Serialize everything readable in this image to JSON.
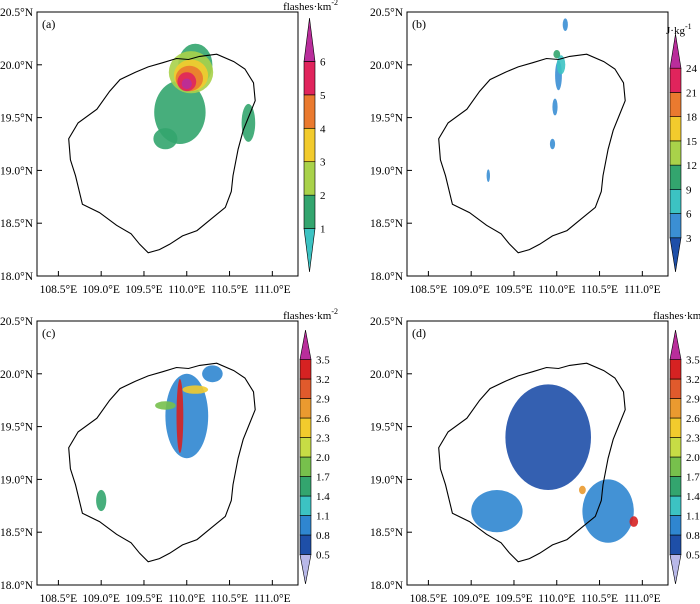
{
  "figure": {
    "xticks": [
      "108.5°E",
      "109.0°E",
      "109.5°E",
      "110.0°E",
      "110.5°E",
      "111.0°E"
    ],
    "yticks": [
      "20.5°N",
      "20.0°N",
      "19.5°N",
      "19.0°N",
      "18.5°N",
      "18.0°N"
    ]
  },
  "chart_data": [
    {
      "type": "heatmap",
      "panel_label": "(a)",
      "colorbar_title": "flashes·km",
      "colorbar_title_exp": "-2",
      "xlim": [
        108.25,
        111.3
      ],
      "ylim": [
        18.0,
        20.5
      ],
      "colorbar_levels": [
        "1",
        "2",
        "3",
        "4",
        "5",
        "6"
      ],
      "colorbar_colors": [
        "#3cc3c3",
        "#33a56e",
        "#a9d24a",
        "#f2cb2d",
        "#ea7a2f",
        "#e0245c",
        "#b92d9b"
      ],
      "blobs": [
        {
          "lon": 110.0,
          "lat": 19.82,
          "rx": 0.06,
          "ry": 0.05,
          "level": 6
        },
        {
          "lon": 110.0,
          "lat": 19.84,
          "rx": 0.11,
          "ry": 0.09,
          "level": 5
        },
        {
          "lon": 110.03,
          "lat": 19.87,
          "rx": 0.16,
          "ry": 0.12,
          "level": 4
        },
        {
          "lon": 110.05,
          "lat": 19.9,
          "rx": 0.2,
          "ry": 0.15,
          "level": 3
        },
        {
          "lon": 110.05,
          "lat": 19.93,
          "rx": 0.26,
          "ry": 0.2,
          "level": 2
        },
        {
          "lon": 109.92,
          "lat": 19.55,
          "rx": 0.3,
          "ry": 0.3,
          "level": 1
        },
        {
          "lon": 110.1,
          "lat": 20.0,
          "rx": 0.2,
          "ry": 0.2,
          "level": 1
        },
        {
          "lon": 109.75,
          "lat": 19.3,
          "rx": 0.14,
          "ry": 0.1,
          "level": 1
        },
        {
          "lon": 110.72,
          "lat": 19.45,
          "rx": 0.08,
          "ry": 0.18,
          "level": 1
        }
      ]
    },
    {
      "type": "heatmap",
      "panel_label": "(b)",
      "colorbar_title": "J·kg",
      "colorbar_title_exp": "-1",
      "xlim": [
        108.25,
        111.3
      ],
      "ylim": [
        18.0,
        20.5
      ],
      "colorbar_levels": [
        "3",
        "6",
        "9",
        "12",
        "15",
        "18",
        "21",
        "24"
      ],
      "colorbar_colors": [
        "#1e4fa8",
        "#3b8fd4",
        "#3cc3c3",
        "#33a56e",
        "#a9d24a",
        "#f2cb2d",
        "#ea7a2f",
        "#e0245c",
        "#b92d9b"
      ],
      "blobs": [
        {
          "lon": 110.05,
          "lat": 20.0,
          "rx": 0.05,
          "ry": 0.09,
          "level": 2
        },
        {
          "lon": 110.02,
          "lat": 19.9,
          "rx": 0.04,
          "ry": 0.14,
          "level": 1
        },
        {
          "lon": 109.98,
          "lat": 19.6,
          "rx": 0.03,
          "ry": 0.08,
          "level": 1
        },
        {
          "lon": 109.95,
          "lat": 19.25,
          "rx": 0.03,
          "ry": 0.05,
          "level": 1
        },
        {
          "lon": 110.0,
          "lat": 20.1,
          "rx": 0.04,
          "ry": 0.04,
          "level": 3
        },
        {
          "lon": 109.2,
          "lat": 18.95,
          "rx": 0.02,
          "ry": 0.06,
          "level": 1
        },
        {
          "lon": 110.1,
          "lat": 20.38,
          "rx": 0.03,
          "ry": 0.06,
          "level": 1
        }
      ]
    },
    {
      "type": "heatmap",
      "panel_label": "(c)",
      "colorbar_title": "flashes·km",
      "colorbar_title_exp": "-2",
      "xlim": [
        108.25,
        111.3
      ],
      "ylim": [
        18.0,
        20.5
      ],
      "colorbar_levels": [
        "0.5",
        "0.8",
        "1.1",
        "1.4",
        "1.7",
        "2.0",
        "2.3",
        "2.6",
        "2.9",
        "3.2",
        "3.5"
      ],
      "colorbar_colors": [
        "#b8b8e8",
        "#1e4fa8",
        "#2f86d0",
        "#3cc3c3",
        "#33a56e",
        "#77c04c",
        "#c7dc45",
        "#f2cb2d",
        "#ea9a2f",
        "#e05a2c",
        "#d62222",
        "#b92d9b"
      ],
      "blobs": [
        {
          "lon": 109.92,
          "lat": 19.6,
          "rx": 0.04,
          "ry": 0.35,
          "level": 10
        },
        {
          "lon": 110.1,
          "lat": 19.85,
          "rx": 0.15,
          "ry": 0.04,
          "level": 7
        },
        {
          "lon": 109.75,
          "lat": 19.7,
          "rx": 0.12,
          "ry": 0.04,
          "level": 5
        },
        {
          "lon": 110.0,
          "lat": 19.6,
          "rx": 0.25,
          "ry": 0.4,
          "level": 2
        },
        {
          "lon": 109.0,
          "lat": 18.8,
          "rx": 0.06,
          "ry": 0.1,
          "level": 4
        },
        {
          "lon": 110.3,
          "lat": 20.0,
          "rx": 0.12,
          "ry": 0.08,
          "level": 2
        }
      ]
    },
    {
      "type": "heatmap",
      "panel_label": "(d)",
      "colorbar_title": "flashes·km",
      "colorbar_title_exp": "-2",
      "xlim": [
        108.25,
        111.3
      ],
      "ylim": [
        18.0,
        20.5
      ],
      "colorbar_levels": [
        "0.5",
        "0.8",
        "1.1",
        "1.4",
        "1.7",
        "2.0",
        "2.3",
        "2.6",
        "2.9",
        "3.2",
        "3.5"
      ],
      "colorbar_colors": [
        "#b8b8e8",
        "#1e4fa8",
        "#2f86d0",
        "#3cc3c3",
        "#33a56e",
        "#77c04c",
        "#c7dc45",
        "#f2cb2d",
        "#ea9a2f",
        "#e05a2c",
        "#d62222",
        "#b92d9b"
      ],
      "blobs": [
        {
          "lon": 109.9,
          "lat": 19.4,
          "rx": 0.5,
          "ry": 0.5,
          "level": 1
        },
        {
          "lon": 110.6,
          "lat": 18.7,
          "rx": 0.3,
          "ry": 0.3,
          "level": 2
        },
        {
          "lon": 109.3,
          "lat": 18.7,
          "rx": 0.3,
          "ry": 0.2,
          "level": 2
        },
        {
          "lon": 110.9,
          "lat": 18.6,
          "rx": 0.05,
          "ry": 0.05,
          "level": 10
        },
        {
          "lon": 110.3,
          "lat": 18.9,
          "rx": 0.04,
          "ry": 0.04,
          "level": 8
        }
      ]
    }
  ]
}
